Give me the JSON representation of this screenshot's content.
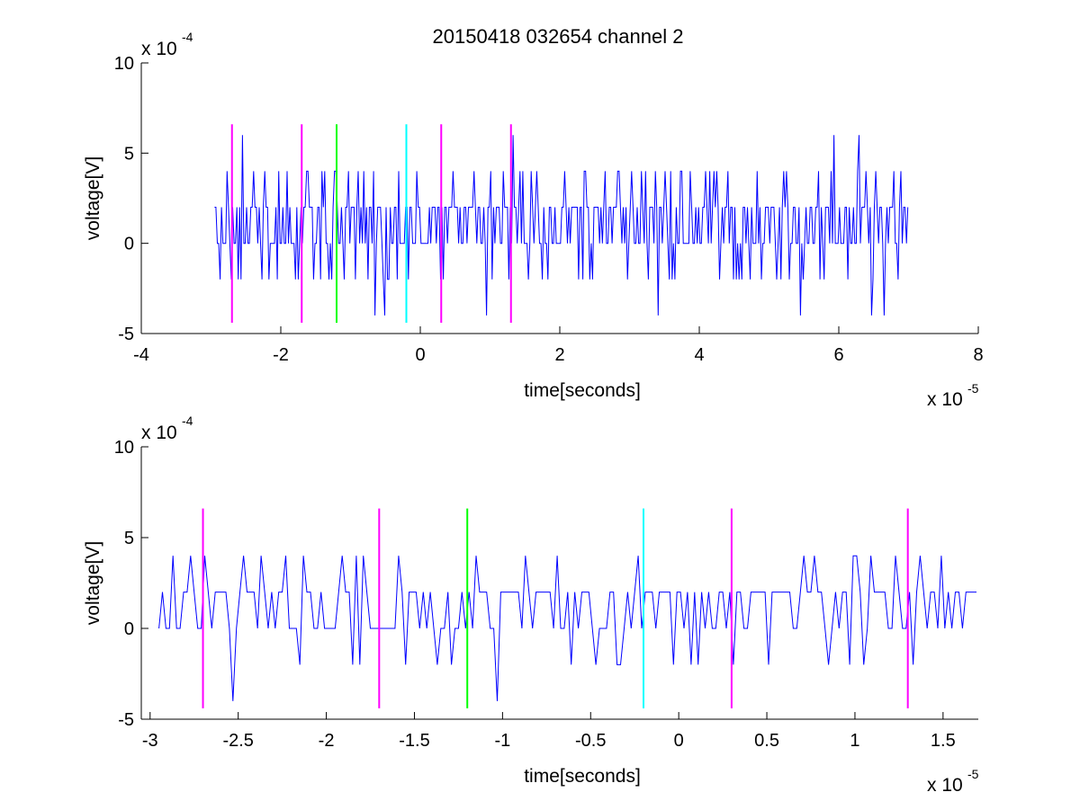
{
  "figure_title": "20150418 032654 channel 2",
  "chart_data": [
    {
      "type": "line",
      "title": "20150418 032654 channel 2",
      "xlabel": "time[seconds]",
      "ylabel": "voltage[V]",
      "x_exponent_label": "x 10",
      "x_exponent": "-5",
      "y_exponent_label": "x 10",
      "y_exponent": "-4",
      "xlim": [
        -4,
        8
      ],
      "ylim": [
        -5,
        10
      ],
      "xticks": [
        -4,
        -2,
        0,
        2,
        4,
        6,
        8
      ],
      "xtick_labels": [
        "-4",
        "-2",
        "0",
        "2",
        "4",
        "6",
        "8"
      ],
      "yticks": [
        -5,
        0,
        5,
        10
      ],
      "ytick_labels": [
        "-5",
        "0",
        "5",
        "10"
      ],
      "grid": false,
      "series": [
        {
          "color": "#0000ff",
          "levels": [
            -4,
            -2,
            0,
            2,
            4,
            6
          ],
          "x_range": [
            -2.95,
            7.0
          ],
          "sample_step": 0.02,
          "min": -4,
          "max": 6
        }
      ],
      "markers": [
        {
          "x": -2.7,
          "color": "#ff00ff"
        },
        {
          "x": -1.7,
          "color": "#ff00ff"
        },
        {
          "x": -1.2,
          "color": "#00ff00"
        },
        {
          "x": -0.2,
          "color": "#00ffff"
        },
        {
          "x": 0.3,
          "color": "#ff00ff"
        },
        {
          "x": 1.3,
          "color": "#ff00ff"
        }
      ],
      "marker_range": [
        -4.4,
        6.6
      ]
    },
    {
      "type": "line",
      "title": "",
      "xlabel": "time[seconds]",
      "ylabel": "voltage[V]",
      "x_exponent_label": "x 10",
      "x_exponent": "-5",
      "y_exponent_label": "x 10",
      "y_exponent": "-4",
      "xlim": [
        -3.05,
        1.7
      ],
      "ylim": [
        -5,
        10
      ],
      "xticks": [
        -3,
        -2.5,
        -2,
        -1.5,
        -1,
        -0.5,
        0,
        0.5,
        1,
        1.5
      ],
      "xtick_labels": [
        "-3",
        "-2.5",
        "-2",
        "-1.5",
        "-1",
        "-0.5",
        "0",
        "0.5",
        "1",
        "1.5"
      ],
      "yticks": [
        -5,
        0,
        5,
        10
      ],
      "ytick_labels": [
        "-5",
        "0",
        "5",
        "10"
      ],
      "grid": false,
      "series": [
        {
          "color": "#0000ff",
          "levels": [
            -4,
            -2,
            0,
            2,
            4
          ],
          "x_range": [
            -2.95,
            1.7
          ],
          "sample_step": 0.02,
          "min": -4,
          "max": 4
        }
      ],
      "markers": [
        {
          "x": -2.7,
          "color": "#ff00ff"
        },
        {
          "x": -1.7,
          "color": "#ff00ff"
        },
        {
          "x": -1.2,
          "color": "#00ff00"
        },
        {
          "x": -0.2,
          "color": "#00ffff"
        },
        {
          "x": 0.3,
          "color": "#ff00ff"
        },
        {
          "x": 1.3,
          "color": "#ff00ff"
        }
      ],
      "marker_range": [
        -4.4,
        6.6
      ]
    }
  ]
}
